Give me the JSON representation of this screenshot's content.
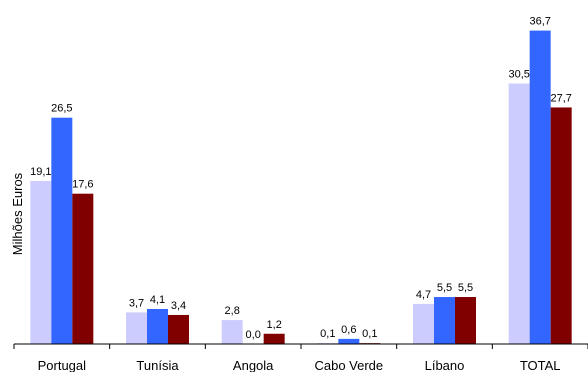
{
  "chart_data": {
    "type": "bar",
    "title": "",
    "xlabel": "",
    "ylabel": "Milhões Euros",
    "categories": [
      "Portugal",
      "Tunísia",
      "Angola",
      "Cabo Verde",
      "Líbano",
      "TOTAL"
    ],
    "series": [
      {
        "values": [
          19.1,
          3.7,
          2.8,
          0.1,
          4.7,
          30.5
        ],
        "labels": [
          "19,1",
          "3,7",
          "2,8",
          "0,1",
          "4,7",
          "30,5"
        ],
        "color": "#ccccff"
      },
      {
        "values": [
          26.5,
          4.1,
          0.0,
          0.6,
          5.5,
          36.7
        ],
        "labels": [
          "26,5",
          "4,1",
          "0,0",
          "0,6",
          "5,5",
          "36,7"
        ],
        "color": "#3366ff"
      },
      {
        "values": [
          17.6,
          3.4,
          1.2,
          0.1,
          5.5,
          27.7
        ],
        "labels": [
          "17,6",
          "3,4",
          "1,2",
          "0,1",
          "5,5",
          "27,7"
        ],
        "color": "#800000"
      }
    ],
    "ylim": [
      0,
      40
    ],
    "grid": false,
    "legend": "none"
  }
}
